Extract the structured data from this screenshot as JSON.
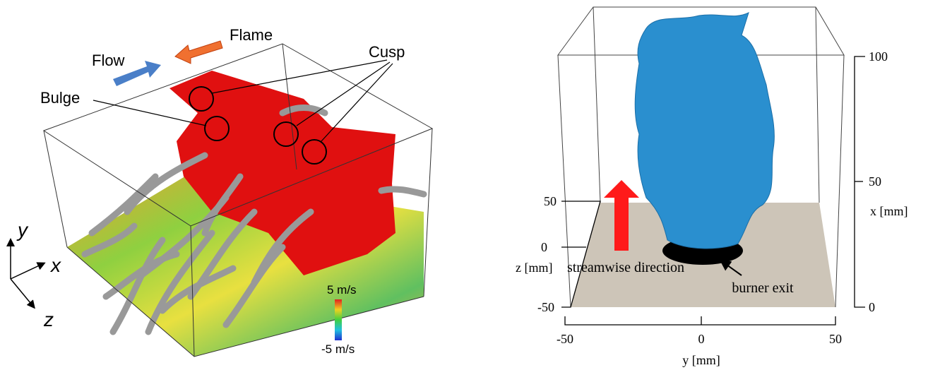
{
  "left_panel": {
    "labels": {
      "flow": "Flow",
      "flame": "Flame",
      "cusp": "Cusp",
      "bulge": "Bulge"
    },
    "axes": {
      "y": "y",
      "x": "x",
      "z": "z"
    },
    "colorbar": {
      "max": "5 m/s",
      "min": "-5 m/s"
    }
  },
  "right_panel": {
    "x_axis": {
      "title": "x [mm]",
      "ticks": [
        "100",
        "50",
        "0"
      ]
    },
    "z_axis": {
      "title": "z [mm]",
      "ticks": [
        "50",
        "0",
        "-50"
      ]
    },
    "y_axis": {
      "title": "y [mm]",
      "ticks": [
        "-50",
        "0",
        "50"
      ]
    },
    "annotations": {
      "streamwise": "streamwise direction",
      "burner": "burner exit"
    }
  }
}
